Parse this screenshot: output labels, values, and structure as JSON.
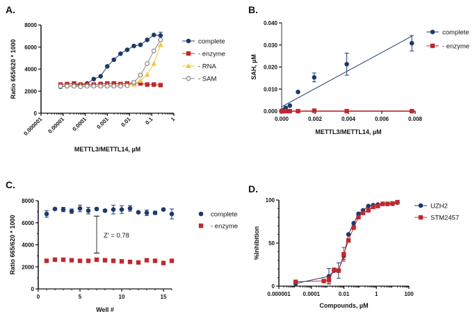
{
  "chart_data": [
    {
      "panel": "A.",
      "type": "line",
      "xlabel": "METTL3/METTL14, µM",
      "ylabel": "Ratio 665/620 * 1000",
      "xscale": "log",
      "xlim": [
        1e-06,
        1
      ],
      "ylim": [
        0,
        8000
      ],
      "xticks": [
        1e-06,
        1e-05,
        0.0001,
        0.001,
        0.01,
        0.1,
        1
      ],
      "xtick_labels": [
        "0.000001",
        "0.00001",
        "0.0001",
        "0.001",
        "0.01",
        "0.1",
        "1"
      ],
      "yticks": [
        0,
        2000,
        4000,
        6000,
        8000
      ],
      "ytick_labels": [
        "0",
        "2000",
        "4000",
        "6000",
        "8000"
      ],
      "legend": "right",
      "x": [
        7.6e-06,
        1.5e-05,
        3.1e-05,
        6.1e-05,
        0.00012,
        0.00024,
        0.00049,
        0.00098,
        0.00195,
        0.0039,
        0.0078,
        0.0156,
        0.031,
        0.0625,
        0.125,
        0.25
      ],
      "series": [
        {
          "name": "complete",
          "color": "#1c3a6b",
          "marker": "circle",
          "y": [
            2400,
            2450,
            2550,
            2600,
            2700,
            3100,
            3350,
            4250,
            4850,
            5400,
            5750,
            6100,
            6200,
            6650,
            7100,
            7050
          ],
          "err": [
            0,
            0,
            0,
            0,
            0,
            0,
            0,
            0,
            0,
            0,
            0,
            0,
            0,
            0,
            0,
            300
          ]
        },
        {
          "name": "- enzyme",
          "color": "#c0282d",
          "marker": "square",
          "y": [
            2600,
            2650,
            2700,
            2600,
            2600,
            2600,
            2650,
            2700,
            2700,
            2650,
            2700,
            2750,
            2700,
            2600,
            2600,
            2550
          ]
        },
        {
          "name": "- RNA",
          "color": "#f5c242",
          "marker": "triangle",
          "y": [
            2500,
            2500,
            2500,
            2500,
            2500,
            2500,
            2500,
            2550,
            2500,
            2550,
            2550,
            2600,
            2950,
            3500,
            4500,
            6200
          ]
        },
        {
          "name": "- SAM",
          "color": "#8c8c8c",
          "marker": "open-circle",
          "y": [
            2450,
            2450,
            2450,
            2400,
            2450,
            2450,
            2450,
            2450,
            2450,
            2450,
            2500,
            2800,
            3450,
            4500,
            5650,
            6650
          ]
        }
      ]
    },
    {
      "panel": "B.",
      "type": "scatter",
      "xlabel": "METTL3/METTL14, µM",
      "ylabel": "SAH, µM",
      "xscale": "linear",
      "xlim": [
        0,
        0.008
      ],
      "ylim": [
        0,
        0.04
      ],
      "xticks": [
        0,
        0.002,
        0.004,
        0.006,
        0.008
      ],
      "xtick_labels": [
        "0.000",
        "0.002",
        "0.004",
        "0.006",
        "0.008"
      ],
      "yticks": [
        0,
        0.01,
        0.02,
        0.03,
        0.04
      ],
      "ytick_labels": [
        "0.000",
        "0.010",
        "0.020",
        "0.030",
        "0.040"
      ],
      "legend": "right",
      "x": [
        0,
        3e-05,
        6e-05,
        0.00012,
        0.00024,
        0.00049,
        0.00098,
        0.00195,
        0.0039,
        0.0078
      ],
      "series": [
        {
          "name": "complete",
          "color": "#1c3a6b",
          "marker": "circle",
          "y": [
            0,
            0,
            0.0002,
            0.0005,
            0.0015,
            0.0025,
            0.0087,
            0.0153,
            0.0213,
            0.0308
          ],
          "err": [
            0,
            0,
            0,
            0,
            0,
            0,
            0,
            0.002,
            0.005,
            0.0035
          ],
          "linear_fit": {
            "slope": 4.1,
            "intercept": 0.002
          }
        },
        {
          "name": "- enzyme",
          "color": "#c0282d",
          "marker": "square",
          "y": [
            0,
            0,
            0,
            0,
            0,
            0,
            0,
            0.0002,
            0,
            0
          ]
        }
      ]
    },
    {
      "panel": "C.",
      "type": "scatter",
      "xlabel": "Well #",
      "ylabel": "Ratio 665/620 * 1000",
      "xscale": "linear",
      "xlim": [
        0,
        16
      ],
      "ylim": [
        0,
        8000
      ],
      "xticks": [
        0,
        5,
        10,
        15
      ],
      "xtick_labels": [
        "0",
        "5",
        "10",
        "15"
      ],
      "yticks": [
        0,
        2000,
        4000,
        6000,
        8000
      ],
      "ytick_labels": [
        "0",
        "2000",
        "4000",
        "6000",
        "8000"
      ],
      "legend": "right",
      "x": [
        1,
        2,
        3,
        4,
        5,
        6,
        7,
        8,
        9,
        10,
        11,
        12,
        13,
        14,
        15,
        16
      ],
      "series": [
        {
          "name": "complete",
          "color": "#1c3a6b",
          "marker": "circle",
          "y": [
            6800,
            7250,
            7200,
            7050,
            7300,
            7100,
            7250,
            7100,
            7200,
            7200,
            7300,
            6950,
            6900,
            6900,
            7200,
            6800
          ],
          "err": [
            300,
            100,
            200,
            200,
            300,
            300,
            100,
            100,
            400,
            350,
            250,
            100,
            250,
            150,
            100,
            450
          ]
        },
        {
          "name": "- enzyme",
          "color": "#c0282d",
          "marker": "square",
          "y": [
            2550,
            2650,
            2650,
            2600,
            2550,
            2550,
            2650,
            2600,
            2550,
            2500,
            2450,
            2400,
            2600,
            2550,
            2350,
            2550
          ]
        }
      ],
      "annotation": {
        "text": "Z' = 0.78",
        "x": 7,
        "y_from": 3250,
        "y_to": 6600
      }
    },
    {
      "panel": "D.",
      "type": "line",
      "xlabel": "Compounds, µM",
      "ylabel": "%Inhibition",
      "xscale": "log",
      "xlim": [
        1e-06,
        100
      ],
      "ylim": [
        0,
        100
      ],
      "xticks": [
        1e-06,
        0.0001,
        0.01,
        1,
        100
      ],
      "xtick_labels": [
        "0.000001",
        "0.0001",
        "0.01",
        "1",
        "100"
      ],
      "yticks": [
        0,
        50,
        100
      ],
      "ytick_labels": [
        "0",
        "50",
        "100"
      ],
      "legend": "right",
      "series": [
        {
          "name": "UZH2",
          "color": "#1c3a6b",
          "marker": "circle",
          "x": [
            1.07e-05,
            0.0012,
            0.0025,
            0.0047,
            0.0098,
            0.019,
            0.04,
            0.079,
            0.15,
            0.32,
            0.63,
            1.23,
            2.45,
            4.9,
            9.8,
            19.5
          ],
          "y": [
            3,
            11.5,
            18,
            18,
            35,
            60,
            73,
            84,
            88,
            93,
            94,
            94.7,
            95.5,
            95.5,
            95.5,
            97
          ],
          "err": [
            0,
            9,
            0,
            9,
            4,
            0,
            0,
            0,
            0,
            0,
            0,
            0,
            0,
            0,
            0,
            0
          ]
        },
        {
          "name": "STM2457",
          "color": "#c0282d",
          "marker": "square",
          "x": [
            1.07e-05,
            0.00058,
            0.0012,
            0.0025,
            0.0047,
            0.0098,
            0.019,
            0.04,
            0.079,
            0.15,
            0.32,
            0.63,
            1.23,
            2.45,
            4.9,
            9.8,
            19.5
          ],
          "y": [
            5,
            6,
            7,
            19,
            18,
            37,
            53,
            68,
            80,
            85,
            88,
            92,
            93,
            95.5,
            95.5,
            96,
            97.5
          ],
          "err": [
            0,
            0,
            4,
            0,
            0,
            8,
            0,
            0,
            0,
            0,
            0,
            0,
            0,
            0,
            0,
            0,
            0
          ]
        }
      ]
    }
  ]
}
